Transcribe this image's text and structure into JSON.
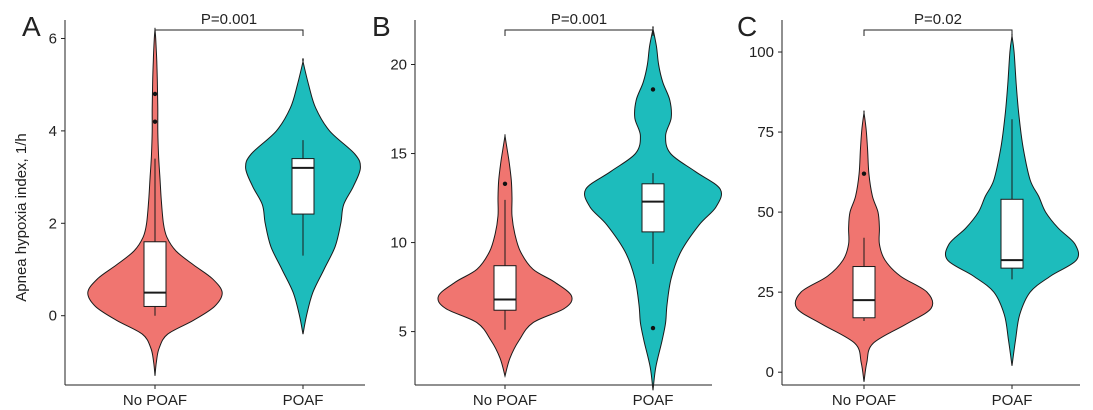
{
  "chart_data": [
    {
      "panel": "A",
      "type": "violin",
      "ylabel": "Apnea hypoxia index, 1/h",
      "ylim": [
        -1.5,
        6.4
      ],
      "yticks": [
        0,
        2,
        4,
        6
      ],
      "categories": [
        "No POAF",
        "POAF"
      ],
      "pvalue": "P=0.001",
      "colors": [
        "#f07570",
        "#1dbcbc"
      ],
      "violins": [
        {
          "name": "No POAF",
          "profile": [
            [
              -1.3,
              0
            ],
            [
              -1.0,
              0.02
            ],
            [
              -0.7,
              0.06
            ],
            [
              -0.4,
              0.18
            ],
            [
              -0.1,
              0.55
            ],
            [
              0.2,
              0.85
            ],
            [
              0.5,
              0.96
            ],
            [
              0.8,
              0.82
            ],
            [
              1.1,
              0.55
            ],
            [
              1.4,
              0.3
            ],
            [
              1.7,
              0.17
            ],
            [
              2.0,
              0.12
            ],
            [
              2.5,
              0.09
            ],
            [
              3.0,
              0.07
            ],
            [
              3.5,
              0.05
            ],
            [
              4.0,
              0.04
            ],
            [
              4.5,
              0.04
            ],
            [
              5.0,
              0.035
            ],
            [
              5.5,
              0.025
            ],
            [
              6.0,
              0.01
            ],
            [
              6.2,
              0
            ]
          ],
          "box": {
            "q1": 0.2,
            "median": 0.5,
            "q3": 1.6,
            "whisker_low": 0.0,
            "whisker_high": 3.4
          },
          "outliers": [
            4.2,
            4.8
          ]
        },
        {
          "name": "POAF",
          "profile": [
            [
              -0.4,
              0
            ],
            [
              0.0,
              0.05
            ],
            [
              0.5,
              0.14
            ],
            [
              1.0,
              0.3
            ],
            [
              1.5,
              0.46
            ],
            [
              2.0,
              0.54
            ],
            [
              2.4,
              0.58
            ],
            [
              2.8,
              0.72
            ],
            [
              3.2,
              0.82
            ],
            [
              3.5,
              0.74
            ],
            [
              4.0,
              0.38
            ],
            [
              4.5,
              0.18
            ],
            [
              5.0,
              0.08
            ],
            [
              5.5,
              0
            ]
          ],
          "box": {
            "q1": 2.2,
            "median": 3.2,
            "q3": 3.4,
            "whisker_low": 1.3,
            "whisker_high": 3.8
          },
          "outliers": []
        }
      ]
    },
    {
      "panel": "B",
      "type": "violin",
      "ylabel": "",
      "ylim": [
        2,
        22.5
      ],
      "yticks": [
        5,
        10,
        15,
        20
      ],
      "categories": [
        "No POAF",
        "POAF"
      ],
      "pvalue": "P=0.001",
      "colors": [
        "#f07570",
        "#1dbcbc"
      ],
      "violins": [
        {
          "name": "No POAF",
          "profile": [
            [
              2.5,
              0
            ],
            [
              3.5,
              0.07
            ],
            [
              4.5,
              0.2
            ],
            [
              5.5,
              0.4
            ],
            [
              6.3,
              0.85
            ],
            [
              7.0,
              0.95
            ],
            [
              7.8,
              0.7
            ],
            [
              8.5,
              0.4
            ],
            [
              9.5,
              0.22
            ],
            [
              10.5,
              0.14
            ],
            [
              11.5,
              0.1
            ],
            [
              12.5,
              0.1
            ],
            [
              13.5,
              0.09
            ],
            [
              14.5,
              0.06
            ],
            [
              15.5,
              0.02
            ],
            [
              16.0,
              0
            ]
          ],
          "box": {
            "q1": 6.2,
            "median": 6.8,
            "q3": 8.7,
            "whisker_low": 5.1,
            "whisker_high": 12.4
          },
          "outliers": [
            13.3
          ]
        },
        {
          "name": "POAF",
          "profile": [
            [
              1.7,
              0
            ],
            [
              3.0,
              0.04
            ],
            [
              4.5,
              0.13
            ],
            [
              5.5,
              0.18
            ],
            [
              6.5,
              0.2
            ],
            [
              8.0,
              0.26
            ],
            [
              9.5,
              0.4
            ],
            [
              11.0,
              0.66
            ],
            [
              12.0,
              0.9
            ],
            [
              13.0,
              0.96
            ],
            [
              14.0,
              0.6
            ],
            [
              15.0,
              0.25
            ],
            [
              16.0,
              0.18
            ],
            [
              17.0,
              0.26
            ],
            [
              18.0,
              0.24
            ],
            [
              19.0,
              0.14
            ],
            [
              20.0,
              0.08
            ],
            [
              21.0,
              0.05
            ],
            [
              22.0,
              0
            ]
          ],
          "box": {
            "q1": 10.6,
            "median": 12.3,
            "q3": 13.3,
            "whisker_low": 8.8,
            "whisker_high": 13.9
          },
          "outliers": [
            5.2,
            18.6
          ]
        }
      ]
    },
    {
      "panel": "C",
      "type": "violin",
      "ylabel": "",
      "ylim": [
        -4,
        110
      ],
      "yticks": [
        0,
        25,
        50,
        75,
        100
      ],
      "categories": [
        "No POAF",
        "POAF"
      ],
      "pvalue": "P=0.02",
      "colors": [
        "#f07570",
        "#1dbcbc"
      ],
      "violins": [
        {
          "name": "No POAF",
          "profile": [
            [
              -3,
              0
            ],
            [
              3,
              0.04
            ],
            [
              9,
              0.13
            ],
            [
              15,
              0.6
            ],
            [
              20,
              0.96
            ],
            [
              25,
              0.9
            ],
            [
              30,
              0.52
            ],
            [
              35,
              0.3
            ],
            [
              40,
              0.22
            ],
            [
              45,
              0.22
            ],
            [
              50,
              0.2
            ],
            [
              55,
              0.12
            ],
            [
              62,
              0.07
            ],
            [
              70,
              0.05
            ],
            [
              76,
              0.03
            ],
            [
              81,
              0
            ]
          ],
          "box": {
            "q1": 17,
            "median": 22.5,
            "q3": 33,
            "whisker_low": 16,
            "whisker_high": 42
          },
          "outliers": [
            62
          ]
        },
        {
          "name": "POAF",
          "profile": [
            [
              2,
              0
            ],
            [
              10,
              0.05
            ],
            [
              18,
              0.11
            ],
            [
              25,
              0.26
            ],
            [
              30,
              0.55
            ],
            [
              35,
              0.92
            ],
            [
              40,
              0.9
            ],
            [
              45,
              0.66
            ],
            [
              50,
              0.48
            ],
            [
              55,
              0.38
            ],
            [
              60,
              0.26
            ],
            [
              70,
              0.16
            ],
            [
              80,
              0.1
            ],
            [
              90,
              0.06
            ],
            [
              100,
              0.03
            ],
            [
              105,
              0
            ]
          ],
          "box": {
            "q1": 32.5,
            "median": 35,
            "q3": 54,
            "whisker_low": 29,
            "whisker_high": 79
          },
          "outliers": []
        }
      ]
    }
  ]
}
